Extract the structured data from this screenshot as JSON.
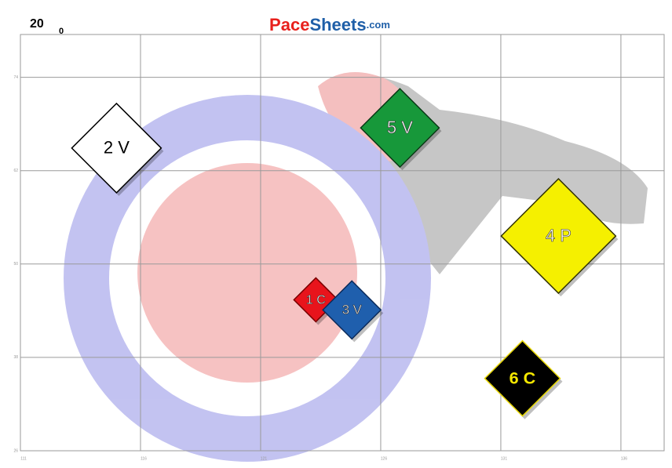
{
  "chart_data": {
    "type": "scatter",
    "corner_main": "20",
    "corner_sub": "0",
    "title_parts": [
      {
        "text": "Pace",
        "color": "#e8201c"
      },
      {
        "text": "Sheets",
        "color": "#1f5fa8"
      },
      {
        "text": ".com",
        "color": "#1f5fa8"
      }
    ],
    "xlim": [
      111,
      137.8
    ],
    "xticks": [
      111,
      116,
      121,
      126,
      131,
      136
    ],
    "ylim": [
      26,
      79.5
    ],
    "yticks": [
      26,
      38,
      50,
      62,
      74
    ],
    "grid": true,
    "points": [
      {
        "label": "1 C",
        "x": 123.3,
        "y": 45.4,
        "size": 28,
        "color": "#e8141c",
        "text_color": "#ffffff",
        "border": "#7a0000"
      },
      {
        "label": "2 V",
        "x": 115.0,
        "y": 64.9,
        "size": 57,
        "color": "#ffffff",
        "text_color": "#000000",
        "border": "#000000"
      },
      {
        "label": "3 V",
        "x": 124.8,
        "y": 44.1,
        "size": 37,
        "color": "#1f5fad",
        "text_color": "#ffffff",
        "border": "#0a2a5a"
      },
      {
        "label": "4 P",
        "x": 133.4,
        "y": 53.6,
        "size": 73,
        "color": "#f5f000",
        "text_color": "#ffffff",
        "border": "#333300"
      },
      {
        "label": "5 V",
        "x": 126.8,
        "y": 67.5,
        "size": 50,
        "color": "#17983a",
        "text_color": "#ffffff",
        "border": "#0a3a16"
      },
      {
        "label": "6 C",
        "x": 131.9,
        "y": 35.3,
        "size": 48,
        "color": "#000000",
        "text_color": "#f5e800",
        "border": "#e8d800"
      }
    ]
  }
}
